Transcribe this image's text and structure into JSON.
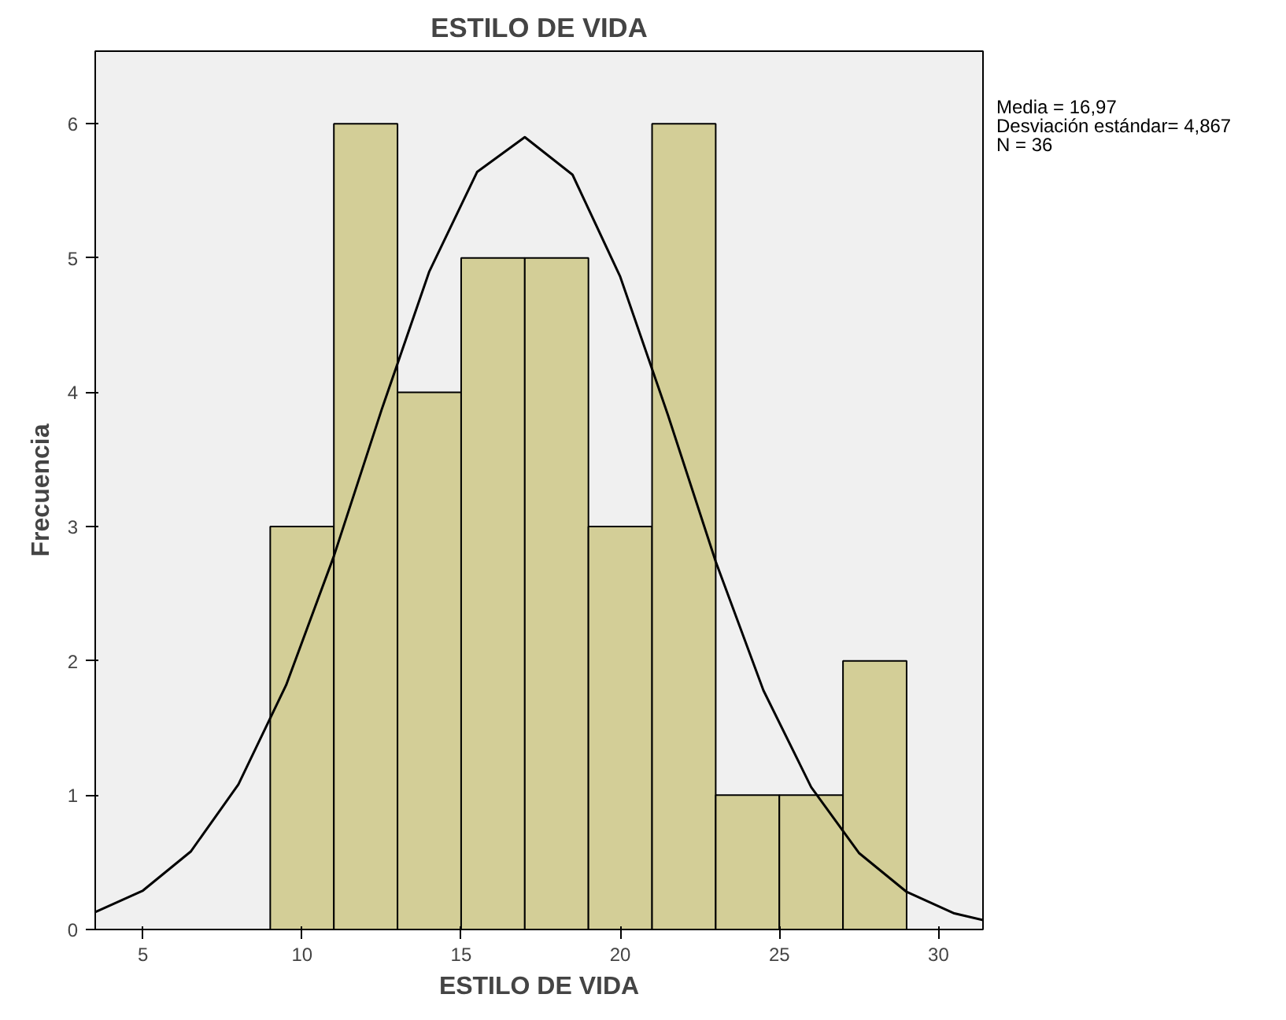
{
  "chart_data": {
    "type": "histogram",
    "title": "ESTILO DE VIDA",
    "xlabel": "ESTILO DE VIDA",
    "ylabel": "Frecuencia",
    "bins": [
      9,
      11,
      13,
      15,
      17,
      19,
      21,
      23,
      25,
      27,
      29
    ],
    "series": [
      {
        "color": "#d3ce97",
        "values": [
          3,
          6,
          4,
          5,
          5,
          3,
          6,
          1,
          1,
          2
        ]
      },
      {
        "type": "line",
        "color": "#000000",
        "x": [
          3.5,
          5,
          6.5,
          8,
          9.5,
          11,
          12.5,
          14,
          15.5,
          17,
          18.5,
          20,
          21.5,
          23,
          24.5,
          26,
          27.5,
          29,
          30.5,
          31.4
        ],
        "values": [
          0.13,
          0.29,
          0.58,
          1.08,
          1.82,
          2.78,
          3.87,
          4.9,
          5.64,
          5.9,
          5.62,
          4.86,
          3.83,
          2.74,
          1.78,
          1.06,
          0.57,
          0.28,
          0.12,
          0.07
        ]
      }
    ],
    "xlim": [
      3.5,
      31.4
    ],
    "xticks": [
      5,
      10,
      15,
      20,
      25,
      30
    ],
    "ylim": [
      0,
      6.54
    ],
    "yticks": [
      0,
      1,
      2,
      3,
      4,
      5,
      6
    ],
    "grid": false,
    "annotations": [
      "Media = 16,97",
      "Desviación estándar= 4,867",
      "N = 36"
    ]
  }
}
